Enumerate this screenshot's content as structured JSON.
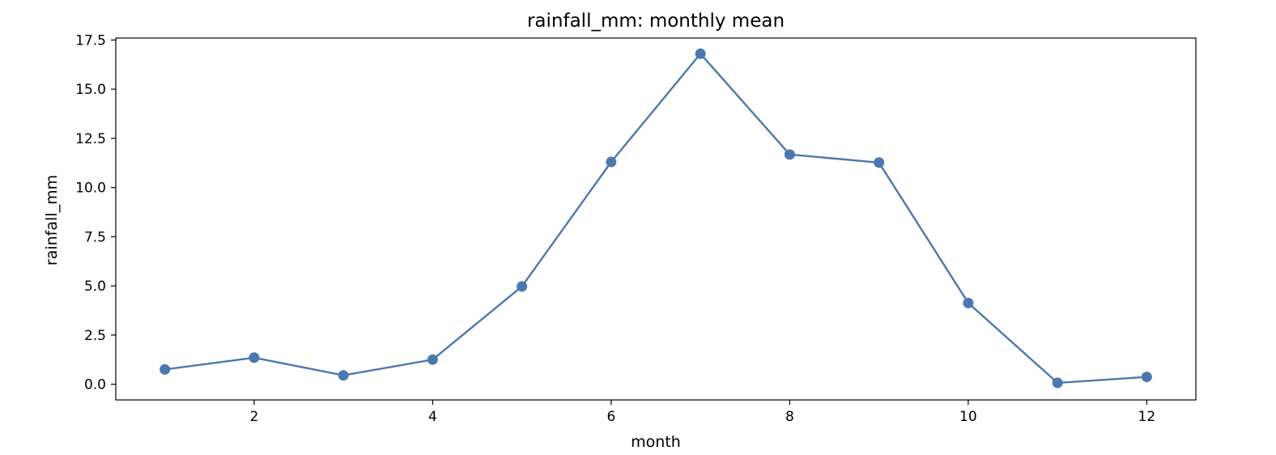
{
  "chart_data": {
    "type": "line",
    "title": "rainfall_mm: monthly mean",
    "xlabel": "month",
    "ylabel": "rainfall_mm",
    "x": [
      1,
      2,
      3,
      4,
      5,
      6,
      7,
      8,
      9,
      10,
      11,
      12
    ],
    "series": [
      {
        "values": [
          0.75,
          1.35,
          0.45,
          1.25,
          4.97,
          11.3,
          16.8,
          11.68,
          11.27,
          4.13,
          0.07,
          0.37
        ],
        "color": "#4c78b0",
        "marker": "circle"
      }
    ],
    "xlim": [
      0.45,
      12.55
    ],
    "ylim": [
      -0.8,
      17.6
    ],
    "xticks": [
      2,
      4,
      6,
      8,
      10,
      12
    ],
    "xtick_labels": [
      "2",
      "4",
      "6",
      "8",
      "10",
      "12"
    ],
    "yticks": [
      0,
      2.5,
      5,
      7.5,
      10,
      12.5,
      15,
      17.5
    ],
    "ytick_labels": [
      "0.0",
      "2.5",
      "5.0",
      "7.5",
      "10.0",
      "12.5",
      "15.0",
      "17.5"
    ],
    "grid": false,
    "legend": false
  }
}
